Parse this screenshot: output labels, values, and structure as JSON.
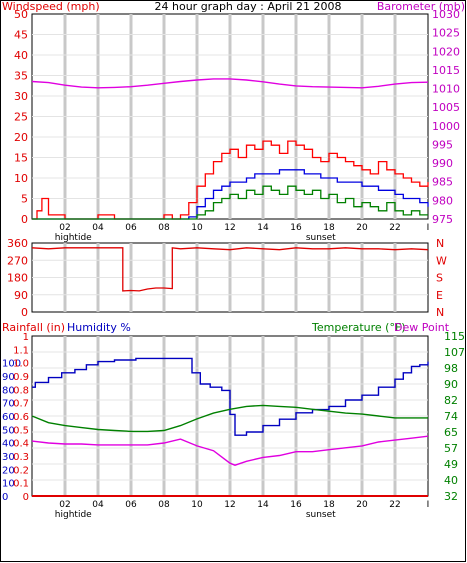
{
  "top": {
    "title": "24 hour graph day : April 21 2008",
    "left_title": "Windspeed (mph)",
    "right_title": "Barometer (mb)"
  },
  "bottom": {
    "rain_title": "Rainfall (in)",
    "humidity_title": "Humidity %",
    "temp_title": "Temperature (°F)",
    "dew_title": "Dew Point"
  },
  "x_axis": {
    "hour_labels": [
      "02",
      "04",
      "06",
      "08",
      "10",
      "12",
      "14",
      "16",
      "18",
      "20",
      "22",
      "I"
    ],
    "event_labels": [
      {
        "text": "hightide",
        "hour": 2.5
      },
      {
        "text": "sunset",
        "hour": 17.5
      }
    ]
  },
  "colors": {
    "windspeed_gust": "#ff0000",
    "windspeed_avg": "#0000e0",
    "windspeed_green": "#008000",
    "barometer": "#e000e0",
    "direction": "#e00000",
    "humidity": "#0000c0",
    "temperature": "#008000",
    "dewpoint": "#e000e0",
    "rainfall": "#e00000"
  },
  "chart_data": [
    {
      "type": "line",
      "title": "24 hour graph day : April 21 2008",
      "x_unit": "hour",
      "xlim": [
        0,
        24
      ],
      "left_axis": {
        "label": "Windspeed (mph)",
        "ylim": [
          0,
          50
        ],
        "ticks": [
          "0",
          "5",
          "10",
          "15",
          "20",
          "25",
          "30",
          "35",
          "40",
          "45",
          "50"
        ]
      },
      "right_axis": {
        "label": "Barometer (mb)",
        "ylim": [
          975,
          1030
        ],
        "ticks": [
          "975",
          "980",
          "985",
          "990",
          "995",
          "1000",
          "1005",
          "1010",
          "1015",
          "1020",
          "1025",
          "1030"
        ]
      },
      "series": [
        {
          "name": "Windspeed (mph)",
          "axis": "left",
          "x": [
            0,
            0.3,
            0.6,
            1,
            2,
            3,
            4,
            5,
            6,
            7,
            8,
            8.5,
            9,
            9.5,
            10,
            10.5,
            11,
            11.5,
            12,
            12.5,
            13,
            13.5,
            14,
            14.5,
            15,
            15.5,
            16,
            16.5,
            17,
            17.5,
            18,
            18.5,
            19,
            19.5,
            20,
            20.5,
            21,
            21.5,
            22,
            22.5,
            23,
            23.5,
            24
          ],
          "y": [
            0,
            2,
            5,
            1,
            0,
            0,
            1,
            0,
            0,
            0,
            1,
            0,
            1,
            4,
            8,
            11,
            14,
            16,
            17,
            15,
            18,
            17,
            19,
            18,
            16,
            19,
            18,
            17,
            15,
            14,
            16,
            15,
            14,
            13,
            12,
            11,
            14,
            12,
            11,
            10,
            9,
            8,
            9
          ]
        },
        {
          "name": "Average wind",
          "axis": "left",
          "x": [
            0,
            9,
            9.5,
            10,
            10.5,
            11,
            11.5,
            12,
            12.5,
            13,
            13.5,
            14,
            14.5,
            15,
            15.5,
            16,
            16.5,
            17,
            17.5,
            18,
            18.5,
            19,
            19.5,
            20,
            20.5,
            21,
            21.5,
            22,
            22.5,
            23,
            23.5,
            24
          ],
          "y": [
            0,
            0,
            0.5,
            3,
            5,
            7,
            8,
            9,
            9,
            10,
            11,
            11,
            11,
            12,
            12,
            12,
            11,
            11,
            10,
            10,
            9,
            9,
            9,
            8,
            8,
            7,
            7,
            6,
            5,
            5,
            4,
            3
          ]
        },
        {
          "name": "Wind",
          "axis": "left",
          "x": [
            0,
            9,
            9.5,
            10,
            10.5,
            11,
            11.5,
            12,
            12.5,
            13,
            13.5,
            14,
            14.5,
            15,
            15.5,
            16,
            16.5,
            17,
            17.5,
            18,
            18.5,
            19,
            19.5,
            20,
            20.5,
            21,
            21.5,
            22,
            22.5,
            23,
            23.5,
            24
          ],
          "y": [
            0,
            0,
            0,
            1,
            2,
            4,
            5,
            6,
            5,
            7,
            6,
            8,
            7,
            6,
            8,
            7,
            6,
            7,
            5,
            6,
            4,
            5,
            3,
            4,
            3,
            2,
            4,
            2,
            1,
            2,
            1,
            1
          ]
        },
        {
          "name": "Barometer (mb)",
          "axis": "right",
          "x": [
            0,
            1,
            2,
            3,
            4,
            5,
            6,
            7,
            8,
            9,
            10,
            11,
            12,
            13,
            14,
            15,
            16,
            17,
            18,
            19,
            20,
            21,
            22,
            23,
            24
          ],
          "y": [
            1011.9,
            1011.6,
            1010.9,
            1010.4,
            1010.2,
            1010.3,
            1010.5,
            1010.9,
            1011.4,
            1011.9,
            1012.3,
            1012.6,
            1012.6,
            1012.3,
            1011.8,
            1011.2,
            1010.7,
            1010.5,
            1010.4,
            1010.3,
            1010.2,
            1010.6,
            1011.2,
            1011.6,
            1011.7
          ]
        }
      ]
    },
    {
      "type": "line",
      "title": "",
      "x_unit": "hour",
      "xlim": [
        0,
        24
      ],
      "left_axis": {
        "ylim": [
          0,
          360
        ],
        "ticks": [
          "0",
          "90",
          "180",
          "270",
          "360"
        ]
      },
      "right_axis": {
        "ticks": [
          "N",
          "W",
          "S",
          "E",
          "N"
        ]
      },
      "series": [
        {
          "name": "Wind direction",
          "x": [
            0,
            1,
            2,
            3,
            4,
            5,
            5.5,
            5.5,
            6,
            6.5,
            7,
            7.5,
            8,
            8.5,
            8.5,
            9,
            10,
            11,
            12,
            13,
            14,
            15,
            16,
            17,
            18,
            19,
            20,
            21,
            22,
            23,
            24
          ],
          "y": [
            335,
            330,
            335,
            335,
            335,
            335,
            335,
            110,
            112,
            110,
            120,
            125,
            125,
            122,
            335,
            330,
            335,
            330,
            325,
            335,
            330,
            325,
            335,
            330,
            330,
            335,
            330,
            330,
            325,
            330,
            325
          ]
        }
      ]
    },
    {
      "type": "line",
      "title": "",
      "x_unit": "hour",
      "xlim": [
        0,
        24
      ],
      "left_axis_rain": {
        "label": "Rainfall (in)",
        "ylim": [
          0,
          1.2
        ],
        "ticks": [
          "0",
          "0.1",
          "0.2",
          "0.3",
          "0.4",
          "0.5",
          "0.6",
          "0.7",
          "0.8",
          "0.9",
          "1.0",
          "1.1",
          "1"
        ]
      },
      "left_axis_humidity": {
        "label": "Humidity %",
        "ylim": [
          0,
          100
        ],
        "ticks": [
          "0",
          "10",
          "20",
          "30",
          "40",
          "50",
          "60",
          "70",
          "80",
          "90",
          "100"
        ]
      },
      "right_axis": {
        "label": "Temperature (°F)",
        "ylim": [
          32,
          115
        ],
        "ticks": [
          "32",
          "40",
          "49",
          "57",
          "65",
          "74",
          "82",
          "90",
          "98",
          "107",
          "115"
        ]
      },
      "series": [
        {
          "name": "Humidity %",
          "axis": "humidity",
          "x": [
            0,
            0.2,
            1,
            1.8,
            2.6,
            3.3,
            4,
            5,
            6.3,
            7,
            8,
            9,
            9.7,
            10.2,
            10.8,
            11.5,
            12,
            12.3,
            13,
            14,
            15,
            16,
            17,
            18,
            19,
            20,
            21,
            22,
            22.5,
            23,
            23.5,
            24
          ],
          "y": [
            68,
            71,
            74,
            77,
            79,
            82,
            84,
            85,
            86,
            86,
            86,
            86,
            77,
            70,
            68,
            66,
            51,
            38,
            40,
            44,
            48,
            52,
            54,
            56,
            60,
            63,
            68,
            73,
            77,
            81,
            82,
            84
          ]
        },
        {
          "name": "Temperature (°F)",
          "axis": "temp",
          "x": [
            0,
            1,
            2,
            3,
            4,
            5,
            6,
            7,
            8,
            9,
            10,
            11,
            12,
            13,
            14,
            15,
            16,
            17,
            18,
            19,
            20,
            21,
            22,
            23,
            24
          ],
          "y": [
            73.5,
            70,
            68.5,
            67.5,
            66.5,
            66,
            65.5,
            65.5,
            66,
            68.5,
            72,
            75,
            77,
            78.5,
            79,
            78.5,
            78,
            77,
            76,
            75,
            74.5,
            73.5,
            72.5,
            72.5,
            72.5
          ]
        },
        {
          "name": "Dew Point",
          "axis": "temp",
          "x": [
            0,
            1,
            2,
            3,
            4,
            5,
            6,
            7,
            8,
            9,
            10,
            11,
            12,
            12.3,
            13,
            14,
            15,
            16,
            17,
            18,
            19,
            20,
            21,
            22,
            23,
            24
          ],
          "y": [
            60.5,
            59.5,
            59,
            59,
            58.5,
            58.5,
            58.5,
            58.5,
            59.5,
            61.5,
            58,
            55.5,
            49,
            48,
            50,
            52,
            53,
            55,
            55,
            56,
            57,
            58,
            60,
            61,
            62,
            63
          ]
        },
        {
          "name": "Rainfall (in)",
          "axis": "rain",
          "x": [
            0,
            24
          ],
          "y": [
            0,
            0
          ]
        }
      ]
    }
  ]
}
